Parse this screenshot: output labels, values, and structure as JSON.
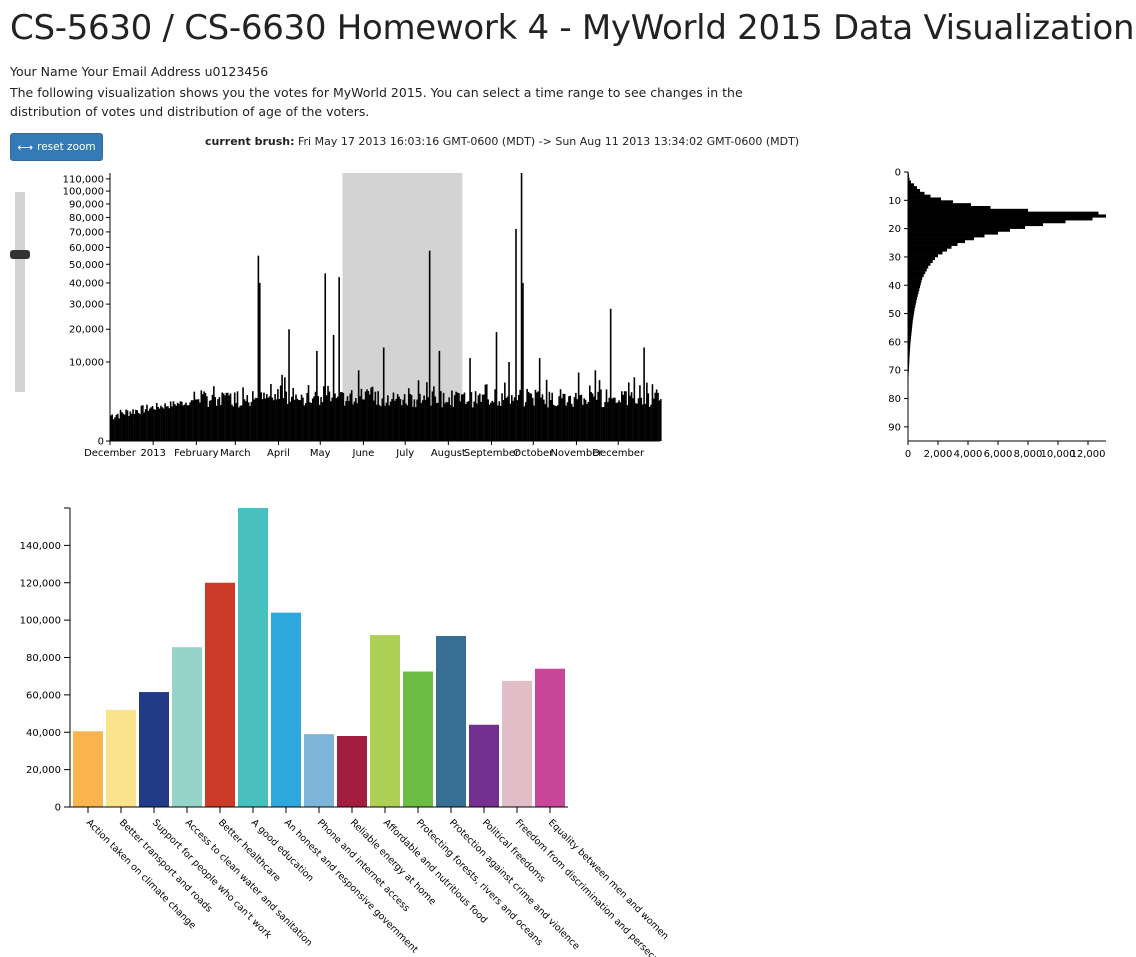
{
  "page": {
    "title": "CS-5630 / CS-6630 Homework 4 - MyWorld 2015 Data Visualization",
    "student": "Your Name Your Email Address u0123456",
    "description": "The following visualization shows you the votes for MyWorld 2015. You can select a time range to see changes in the distribution of votes und distribution of age of the voters."
  },
  "controls": {
    "reset_label": "reset zoom",
    "reset_icon": "left-right-arrow-icon",
    "brush_label": "current brush:",
    "brush_value": "Fri May 17 2013 16:03:16 GMT-0600 (MDT) -> Sun Aug 11 2013 13:34:02 GMT-0600 (MDT)",
    "zoom_slider_value": 0.31
  },
  "chart_data": [
    {
      "type": "bar",
      "id": "votes-over-time",
      "title": "",
      "xlabel": "",
      "ylabel": "",
      "y_scale": "sqrt",
      "ylim": [
        0,
        115000
      ],
      "x_range": [
        "2012-12-01",
        "2013-12-31"
      ],
      "x_ticks": [
        "December",
        "2013",
        "February",
        "March",
        "April",
        "May",
        "June",
        "July",
        "August",
        "September",
        "October",
        "November",
        "December"
      ],
      "y_ticks": [
        "0",
        "10,000",
        "20,000",
        "30,000",
        "40,000",
        "50,000",
        "60,000",
        "70,000",
        "80,000",
        "90,000",
        "100,000",
        "110,000"
      ],
      "brush": [
        "2013-05-17",
        "2013-08-11"
      ],
      "series_summary": "daily vote counts; baseline roughly 1,500-3,500 votes per day",
      "peaks": [
        {
          "x": "2013-03-17",
          "y": 55000
        },
        {
          "x": "2013-03-18",
          "y": 40000
        },
        {
          "x": "2013-04-03",
          "y": 7000
        },
        {
          "x": "2013-04-05",
          "y": 6500
        },
        {
          "x": "2013-04-08",
          "y": 20000
        },
        {
          "x": "2013-04-28",
          "y": 13000
        },
        {
          "x": "2013-05-04",
          "y": 45000
        },
        {
          "x": "2013-05-10",
          "y": 18000
        },
        {
          "x": "2013-05-14",
          "y": 43000
        },
        {
          "x": "2013-05-28",
          "y": 8000
        },
        {
          "x": "2013-06-15",
          "y": 14000
        },
        {
          "x": "2013-07-18",
          "y": 58000
        },
        {
          "x": "2013-07-25",
          "y": 13000
        },
        {
          "x": "2013-08-16",
          "y": 11000
        },
        {
          "x": "2013-09-04",
          "y": 19000
        },
        {
          "x": "2013-09-13",
          "y": 10000
        },
        {
          "x": "2013-09-18",
          "y": 72000
        },
        {
          "x": "2013-09-22",
          "y": 115000
        },
        {
          "x": "2013-09-23",
          "y": 40000
        },
        {
          "x": "2013-10-05",
          "y": 11000
        },
        {
          "x": "2013-10-10",
          "y": 6000
        },
        {
          "x": "2013-11-02",
          "y": 7500
        },
        {
          "x": "2013-11-14",
          "y": 8000
        },
        {
          "x": "2013-11-25",
          "y": 28000
        },
        {
          "x": "2013-12-12",
          "y": 6500
        },
        {
          "x": "2013-12-19",
          "y": 14000
        }
      ]
    },
    {
      "type": "bar",
      "id": "age-distribution",
      "orientation": "horizontal",
      "title": "",
      "xlabel": "",
      "ylabel": "",
      "ylim": [
        0,
        95
      ],
      "xlim": [
        0,
        13200
      ],
      "y_ticks": [
        "0",
        "10",
        "20",
        "30",
        "40",
        "50",
        "60",
        "70",
        "80",
        "90"
      ],
      "x_ticks": [
        "0",
        "2,000",
        "4,000",
        "6,000",
        "8,000",
        "10,000",
        "12,000"
      ],
      "ages": [
        0,
        1,
        2,
        3,
        4,
        5,
        6,
        7,
        8,
        9,
        10,
        11,
        12,
        13,
        14,
        15,
        16,
        17,
        18,
        19,
        20,
        21,
        22,
        23,
        24,
        25,
        26,
        27,
        28,
        29,
        30,
        31,
        32,
        33,
        34,
        35,
        36,
        37,
        38,
        39,
        40,
        41,
        42,
        43,
        44,
        45,
        46,
        47,
        48,
        49,
        50,
        51,
        52,
        53,
        54,
        55,
        56,
        57,
        58,
        59,
        60,
        61,
        62,
        63,
        64,
        65,
        66,
        67,
        68,
        69,
        70,
        71,
        72,
        73,
        74,
        75,
        76,
        77,
        78,
        79,
        80,
        81,
        82,
        83,
        84,
        85,
        86,
        87,
        88,
        89,
        90
      ],
      "counts": [
        50,
        60,
        100,
        200,
        400,
        600,
        800,
        1100,
        1500,
        2200,
        3000,
        4200,
        5500,
        8000,
        12700,
        13200,
        12300,
        10500,
        9000,
        7800,
        6800,
        6000,
        5100,
        4400,
        3800,
        3300,
        2900,
        2600,
        2300,
        2000,
        1800,
        1650,
        1500,
        1350,
        1250,
        1150,
        1050,
        950,
        900,
        850,
        800,
        750,
        700,
        650,
        600,
        560,
        520,
        480,
        440,
        410,
        380,
        350,
        320,
        300,
        280,
        260,
        240,
        220,
        200,
        180,
        160,
        150,
        135,
        120,
        110,
        100,
        90,
        80,
        70,
        60,
        50,
        40,
        35,
        30,
        25,
        20,
        15,
        12,
        10,
        8,
        6,
        5,
        4,
        3,
        3,
        2,
        2,
        1,
        1,
        1,
        1
      ]
    },
    {
      "type": "bar",
      "id": "votes-by-priority",
      "title": "",
      "xlabel": "",
      "ylabel": "",
      "ylim": [
        0,
        160000
      ],
      "y_ticks": [
        "0",
        "20,000",
        "40,000",
        "60,000",
        "80,000",
        "100,000",
        "120,000",
        "140,000"
      ],
      "categories": [
        "Action taken on climate change",
        "Better transport and roads",
        "Support for people who can't work",
        "Access to clean water and sanitation",
        "Better healthcare",
        "A good education",
        "An honest and responsive government",
        "Phone and internet access",
        "Reliable energy at home",
        "Affordable and nutritious food",
        "Protecting forests, rivers and oceans",
        "Protection against crime and violence",
        "Political freedoms",
        "Freedom from discrimination and persecution",
        "Equality between men and women"
      ],
      "values": [
        40500,
        52000,
        61500,
        85500,
        120000,
        160000,
        104000,
        39000,
        38000,
        92000,
        72500,
        91500,
        44000,
        67500,
        74000
      ],
      "colors": [
        "#f9b44e",
        "#fbe38d",
        "#213b87",
        "#96d3c9",
        "#cc3b28",
        "#48c0c0",
        "#2ea7df",
        "#7db4d8",
        "#a31d3e",
        "#aed155",
        "#6bbd44",
        "#376e94",
        "#75308f",
        "#e1bdc8",
        "#c94799"
      ]
    }
  ]
}
